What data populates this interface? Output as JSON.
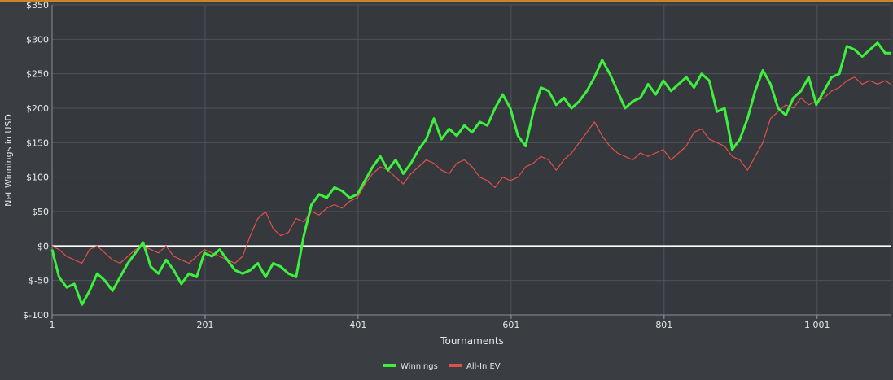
{
  "chart_data": {
    "type": "line",
    "xlabel": "Tournaments",
    "ylabel": "Net Winnings in USD",
    "xlim": [
      1,
      1097
    ],
    "ylim": [
      -100,
      350
    ],
    "x_ticks": [
      1,
      201,
      401,
      601,
      801,
      1001
    ],
    "x_tick_labels": [
      "1",
      "201",
      "401",
      "601",
      "801",
      "1 001"
    ],
    "y_ticks": [
      -100,
      -50,
      0,
      50,
      100,
      150,
      200,
      250,
      300,
      350
    ],
    "y_tick_labels": [
      "$-100",
      "$-50",
      "$0",
      "$50",
      "$100",
      "$150",
      "$200",
      "$250",
      "$300",
      "$350"
    ],
    "grid": true,
    "legend_position": "bottom-center",
    "series": [
      {
        "name": "Winnings",
        "color": "#3ef03e",
        "x": [
          1,
          10,
          20,
          30,
          40,
          50,
          60,
          70,
          80,
          90,
          100,
          110,
          120,
          130,
          140,
          150,
          160,
          170,
          180,
          190,
          200,
          210,
          220,
          230,
          240,
          250,
          260,
          270,
          280,
          290,
          300,
          310,
          320,
          330,
          340,
          350,
          360,
          370,
          380,
          390,
          400,
          410,
          420,
          430,
          440,
          450,
          460,
          470,
          480,
          490,
          500,
          510,
          520,
          530,
          540,
          550,
          560,
          570,
          580,
          590,
          600,
          610,
          620,
          630,
          640,
          650,
          660,
          670,
          680,
          690,
          700,
          710,
          720,
          730,
          740,
          750,
          760,
          770,
          780,
          790,
          800,
          810,
          820,
          830,
          840,
          850,
          860,
          870,
          880,
          890,
          900,
          910,
          920,
          930,
          940,
          950,
          960,
          970,
          980,
          990,
          1000,
          1010,
          1020,
          1030,
          1040,
          1050,
          1060,
          1070,
          1080,
          1090,
          1097
        ],
        "values": [
          -5,
          -45,
          -60,
          -55,
          -85,
          -65,
          -40,
          -50,
          -65,
          -45,
          -25,
          -10,
          5,
          -30,
          -40,
          -20,
          -35,
          -55,
          -40,
          -45,
          -10,
          -15,
          -5,
          -20,
          -35,
          -40,
          -35,
          -25,
          -45,
          -25,
          -30,
          -40,
          -45,
          15,
          60,
          75,
          70,
          85,
          80,
          70,
          75,
          95,
          115,
          130,
          110,
          125,
          105,
          120,
          140,
          155,
          185,
          155,
          170,
          160,
          175,
          165,
          180,
          175,
          200,
          220,
          200,
          160,
          145,
          195,
          230,
          225,
          205,
          215,
          200,
          210,
          225,
          245,
          270,
          250,
          225,
          200,
          210,
          215,
          235,
          220,
          240,
          225,
          235,
          245,
          230,
          250,
          240,
          195,
          200,
          140,
          155,
          185,
          225,
          255,
          235,
          200,
          190,
          215,
          225,
          245,
          205,
          225,
          245,
          250,
          290,
          285,
          275,
          285,
          295,
          280,
          280
        ]
      },
      {
        "name": "All-In EV",
        "color": "#e0504b",
        "x": [
          1,
          10,
          20,
          30,
          40,
          50,
          60,
          70,
          80,
          90,
          100,
          110,
          120,
          130,
          140,
          150,
          160,
          170,
          180,
          190,
          200,
          210,
          220,
          230,
          240,
          250,
          260,
          270,
          280,
          290,
          300,
          310,
          320,
          330,
          340,
          350,
          360,
          370,
          380,
          390,
          400,
          410,
          420,
          430,
          440,
          450,
          460,
          470,
          480,
          490,
          500,
          510,
          520,
          530,
          540,
          550,
          560,
          570,
          580,
          590,
          600,
          610,
          620,
          630,
          640,
          650,
          660,
          670,
          680,
          690,
          700,
          710,
          720,
          730,
          740,
          750,
          760,
          770,
          780,
          790,
          800,
          810,
          820,
          830,
          840,
          850,
          860,
          870,
          880,
          890,
          900,
          910,
          920,
          930,
          940,
          950,
          960,
          970,
          980,
          990,
          1000,
          1010,
          1020,
          1030,
          1040,
          1050,
          1060,
          1070,
          1080,
          1090,
          1097
        ],
        "values": [
          0,
          -5,
          -15,
          -20,
          -25,
          -5,
          0,
          -10,
          -20,
          -25,
          -15,
          -5,
          0,
          -5,
          -10,
          0,
          -15,
          -20,
          -25,
          -15,
          -5,
          -10,
          -15,
          -20,
          -25,
          -15,
          15,
          40,
          50,
          25,
          15,
          20,
          40,
          35,
          50,
          45,
          55,
          60,
          55,
          65,
          70,
          90,
          105,
          115,
          110,
          100,
          90,
          105,
          115,
          125,
          120,
          110,
          105,
          120,
          125,
          115,
          100,
          95,
          85,
          100,
          95,
          100,
          115,
          120,
          130,
          125,
          110,
          125,
          135,
          150,
          165,
          180,
          160,
          145,
          135,
          130,
          125,
          135,
          130,
          135,
          140,
          125,
          135,
          145,
          165,
          170,
          155,
          150,
          145,
          130,
          125,
          110,
          130,
          150,
          185,
          195,
          205,
          200,
          215,
          205,
          210,
          215,
          225,
          230,
          240,
          245,
          235,
          240,
          235,
          240,
          235
        ]
      }
    ]
  }
}
